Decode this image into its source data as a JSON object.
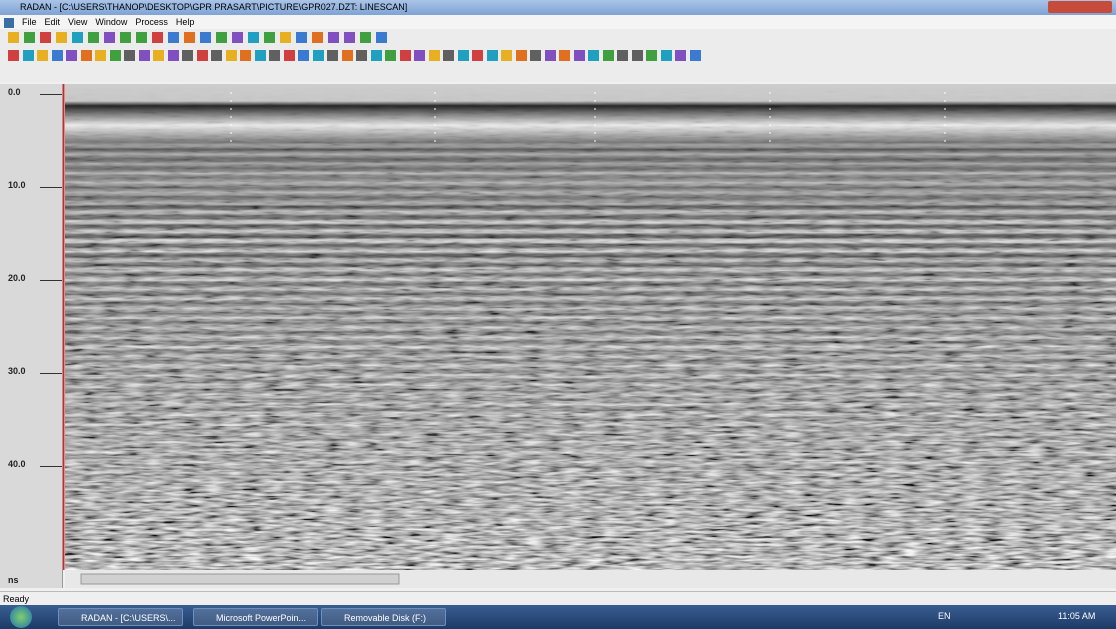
{
  "title_bar": {
    "title": "RADAN - [C:\\USERS\\THANOP\\DESKTOP\\GPR PRASART\\PICTURE\\GPR027.DZT: LINESCAN]"
  },
  "menu": [
    "File",
    "Edit",
    "View",
    "Window",
    "Process",
    "Help"
  ],
  "ruler": {
    "labels": [
      "0.0",
      "10.0",
      "20.0",
      "30.0",
      "40.0"
    ],
    "unit": "ns"
  },
  "status_bar": {
    "text": "Ready"
  },
  "taskbar": {
    "items": [
      "RADAN - [C:\\USERS\\...",
      "Microsoft PowerPoin...",
      "Removable Disk (F:)"
    ],
    "language": "EN",
    "clock": "11:05 AM"
  }
}
